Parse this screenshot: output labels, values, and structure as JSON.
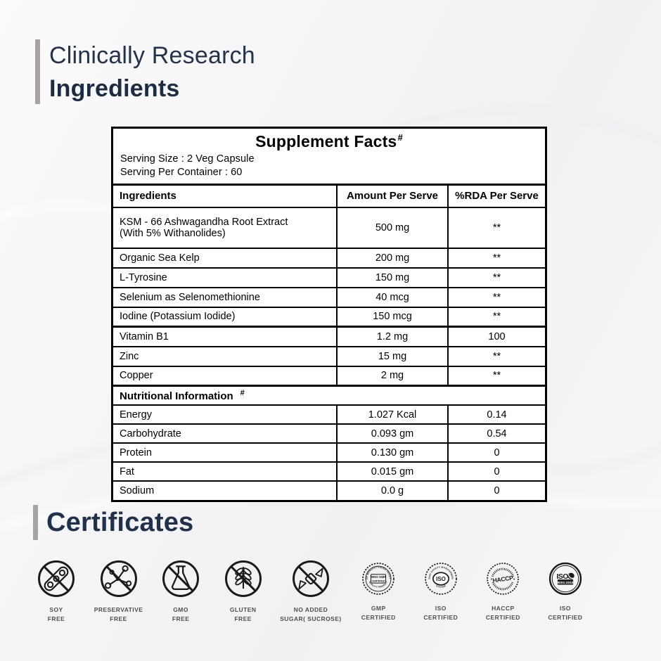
{
  "header": {
    "line1": "Clinically Research",
    "line2": "Ingredients"
  },
  "supplement_facts": {
    "title": "Supplement Facts",
    "title_note": "#",
    "serving_size": "Serving Size : 2 Veg Capsule",
    "serving_per_container": "Serving Per Container : 60",
    "columns": [
      "Ingredients",
      "Amount Per Serve",
      "%RDA Per Serve"
    ],
    "ingredient_rows": [
      {
        "name": "KSM - 66 Ashwagandha Root Extract\n(With 5% Withanolides)",
        "amount": "500 mg",
        "rda": "**"
      },
      {
        "name": "Organic Sea Kelp",
        "amount": "200 mg",
        "rda": "**"
      },
      {
        "name": "L-Tyrosine",
        "amount": "150 mg",
        "rda": "**"
      },
      {
        "name": "Selenium as Selenomethionine",
        "amount": "40 mcg",
        "rda": "**"
      },
      {
        "name": "Iodine (Potassium Iodide)",
        "amount": "150 mcg",
        "rda": "**"
      },
      {
        "name": "Vitamin B1",
        "amount": "1.2 mg",
        "rda": "100"
      },
      {
        "name": "Zinc",
        "amount": "15 mg",
        "rda": "**"
      },
      {
        "name": "Copper",
        "amount": "2 mg",
        "rda": "**"
      }
    ],
    "nutrition_title": "Nutritional Information",
    "nutrition_note": "#",
    "nutrition_rows": [
      {
        "name": "Energy",
        "amount": "1.027 Kcal",
        "rda": "0.14"
      },
      {
        "name": "Carbohydrate",
        "amount": "0.093 gm",
        "rda": "0.54"
      },
      {
        "name": "Protein",
        "amount": "0.130 gm",
        "rda": "0"
      },
      {
        "name": "Fat",
        "amount": "0.015 gm",
        "rda": "0"
      },
      {
        "name": "Sodium",
        "amount": "0.0 g",
        "rda": "0"
      }
    ]
  },
  "certificates": {
    "heading": "Certificates",
    "items": [
      {
        "icon": "soy-free-icon",
        "label": "SOY\nFREE"
      },
      {
        "icon": "preservative-free-icon",
        "label": "PRESERVATIVE\nFREE"
      },
      {
        "icon": "gmo-free-icon",
        "label": "GMO\nFREE"
      },
      {
        "icon": "gluten-free-icon",
        "label": "GLUTEN\nFREE"
      },
      {
        "icon": "no-added-sugar-icon",
        "label": "NO ADDED\nSUGAR( SUCROSE)"
      },
      {
        "icon": "gmp-certified-seal-icon",
        "label": "GMP\nCERTIFIED",
        "ring_top": "GOOD MANUFACTURING PRACTICE",
        "ring_bottom": "QUALITY PRODUCT",
        "center_line1": "WHO GMP",
        "center_line2": "CERTIFIED"
      },
      {
        "icon": "iso-fsms-seal-icon",
        "label": "ISO\nCERTIFIED",
        "ring_top": "FOOD SAFETY MANAGEMENT",
        "ring_bottom": "SYSTEM",
        "center_line1": "ISO"
      },
      {
        "icon": "haccp-seal-icon",
        "label": "HACCP\nCERTIFIED",
        "center_line1": "HACCP"
      },
      {
        "icon": "iso-9001-seal-icon",
        "label": "ISO\nCERTIFIED",
        "center_line1": "ISO",
        "center_line2": "9001:2015"
      }
    ]
  }
}
